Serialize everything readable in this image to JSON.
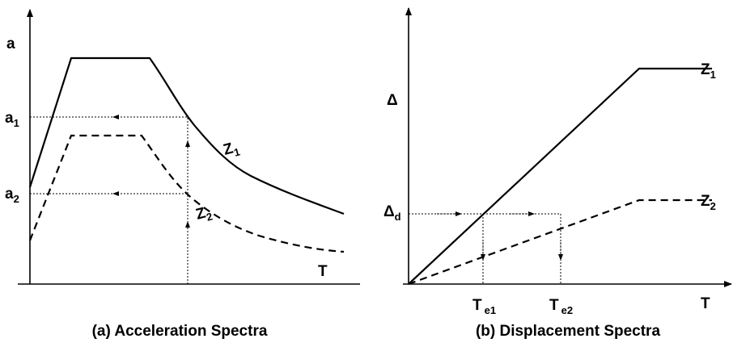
{
  "panel_a": {
    "y_label": "a",
    "level_1": {
      "base": "a",
      "sub": "1"
    },
    "level_2": {
      "base": "a",
      "sub": "2"
    },
    "x_label": "T",
    "curve_1": {
      "base": "Z",
      "sub": "1"
    },
    "curve_2": {
      "base": "Z",
      "sub": "2"
    },
    "caption": "(a)  Acceleration Spectra"
  },
  "panel_b": {
    "y_label": "Δ",
    "level_d": {
      "base": "Δ",
      "sub": "d"
    },
    "period_1": {
      "base": "T",
      "sub": "e1"
    },
    "period_2": {
      "base": "T",
      "sub": "e2"
    },
    "x_label": "T",
    "curve_1": {
      "base": "Z",
      "sub": "1"
    },
    "curve_2": {
      "base": "Z",
      "sub": "2"
    },
    "caption": "(b) Displacement Spectra"
  }
}
